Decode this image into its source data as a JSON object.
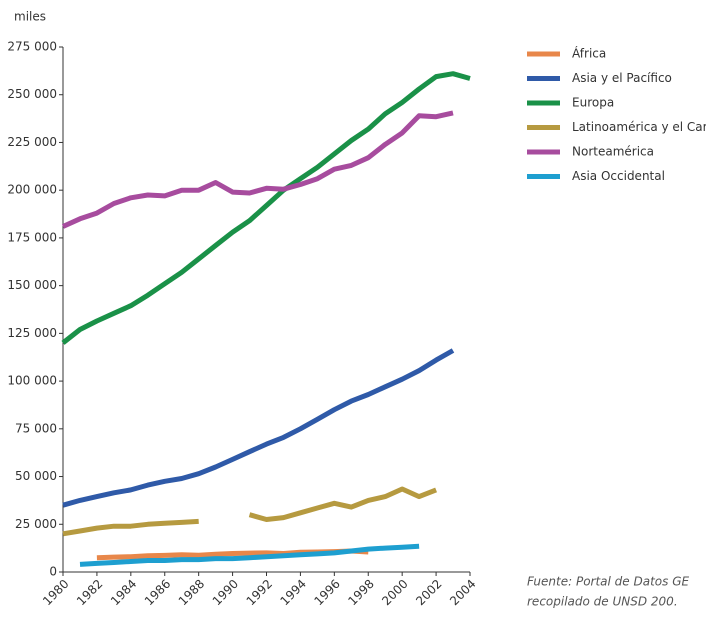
{
  "chart_data": {
    "type": "line",
    "y_label": "miles",
    "x": [
      1980,
      1981,
      1982,
      1983,
      1984,
      1985,
      1986,
      1987,
      1988,
      1989,
      1990,
      1991,
      1992,
      1993,
      1994,
      1995,
      1996,
      1997,
      1998,
      1999,
      2000,
      2001,
      2002,
      2003,
      2004
    ],
    "xlim": [
      1980,
      2004
    ],
    "xticks": [
      1980,
      1982,
      1984,
      1986,
      1988,
      1990,
      1992,
      1994,
      1996,
      1998,
      2000,
      2002,
      2004
    ],
    "ylim": [
      0,
      275000
    ],
    "yticks": [
      0,
      {
        "value": 25000,
        "label": "25 000"
      },
      {
        "value": 50000,
        "label": "50 000"
      },
      {
        "value": 75000,
        "label": "75 000"
      },
      {
        "value": 100000,
        "label": "100 000"
      },
      {
        "value": 125000,
        "label": "125 000"
      },
      {
        "value": 150000,
        "label": "150 000"
      },
      {
        "value": 175000,
        "label": "175 000"
      },
      {
        "value": 200000,
        "label": "200 000"
      },
      {
        "value": 225000,
        "label": "225 000"
      },
      {
        "value": 250000,
        "label": "250 000"
      },
      {
        "value": 275000,
        "label": "275 000"
      }
    ],
    "grid": false,
    "legend": "right",
    "series": [
      {
        "name": "África",
        "color": "#e8874a",
        "values": [
          null,
          null,
          7500,
          7800,
          8000,
          8500,
          8700,
          9000,
          8800,
          9300,
          9700,
          9900,
          10000,
          9700,
          10300,
          10500,
          10700,
          11000,
          10500,
          null,
          null,
          null,
          null,
          null,
          null
        ]
      },
      {
        "name": "Asia y el Pacífico",
        "color": "#2f5aa8",
        "values": [
          35000,
          37500,
          39500,
          41500,
          43000,
          45500,
          47500,
          49000,
          51500,
          55000,
          59000,
          63000,
          67000,
          70500,
          75000,
          80000,
          85000,
          89500,
          93000,
          97000,
          101000,
          105500,
          111000,
          116000,
          null
        ]
      },
      {
        "name": "Europa",
        "color": "#1a9148",
        "values": [
          120000,
          127000,
          131500,
          135500,
          139500,
          145000,
          151000,
          157000,
          164000,
          171000,
          178000,
          184000,
          192000,
          200000,
          206000,
          212000,
          219000,
          226000,
          232000,
          240000,
          246000,
          253000,
          259500,
          261000,
          258500
        ]
      },
      {
        "name": "Latinoamérica y el Caribe",
        "color": "#b69a40",
        "values": [
          20000,
          21500,
          23000,
          24000,
          24000,
          25000,
          25500,
          26000,
          26500,
          null,
          null,
          30000,
          27500,
          28500,
          31000,
          33500,
          36000,
          34000,
          37500,
          39500,
          43500,
          39500,
          43000,
          null,
          null
        ]
      },
      {
        "name": "Norteamérica",
        "color": "#a74c9e",
        "values": [
          181000,
          185000,
          188000,
          193000,
          196000,
          197500,
          197000,
          200000,
          200000,
          204000,
          199000,
          198500,
          201000,
          200500,
          203000,
          206000,
          211000,
          213000,
          217000,
          224000,
          230000,
          239000,
          238500,
          240500,
          null
        ]
      },
      {
        "name": "Asia Occidental",
        "color": "#1e9fd0",
        "values": [
          null,
          4000,
          4500,
          5000,
          5500,
          6000,
          6000,
          6500,
          6500,
          7000,
          7000,
          7500,
          8000,
          8500,
          9000,
          9500,
          10000,
          11000,
          12000,
          12500,
          13000,
          13500,
          null,
          null,
          null
        ]
      }
    ],
    "source": [
      "Fuente: Portal de Datos GE",
      "recopilado de UNSD 200."
    ]
  }
}
